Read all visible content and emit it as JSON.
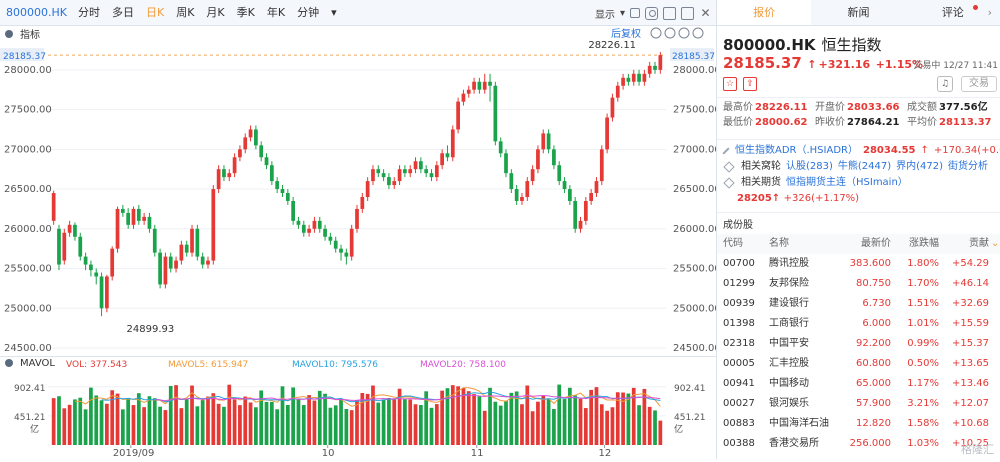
{
  "toolbar": {
    "symbol": "800000.HK",
    "tabs": [
      "分时",
      "多日",
      "日K",
      "周K",
      "月K",
      "季K",
      "年K",
      "分钟"
    ],
    "display_label": "显示"
  },
  "chart": {
    "indicator_label": "指标",
    "adjust_label": "后复权",
    "price_labels": [
      "28000.00",
      "27500.00",
      "27000.00",
      "26500.00",
      "26000.00",
      "25500.00",
      "25000.00",
      "24500.00"
    ],
    "current_price_tag": "28185.37",
    "high_note": "28226.11",
    "low_note": "24899.93",
    "vol_label": "MAVOL",
    "vol_legend": [
      {
        "label": "VOL: 377.543",
        "color": "#e53935"
      },
      {
        "label": "MAVOL5: 615.947",
        "color": "#f29b38"
      },
      {
        "label": "MAVOL10: 795.576",
        "color": "#29a3e0"
      },
      {
        "label": "MAVOL20: 758.100",
        "color": "#d94fd6"
      }
    ],
    "vol_axis": [
      "902.41",
      "451.21",
      "亿"
    ],
    "x_labels": [
      "2019/09",
      "10",
      "11",
      "12"
    ]
  },
  "chart_data": {
    "type": "candlestick",
    "ylim": [
      24500,
      28300
    ],
    "volume_unit": "亿",
    "candles": [
      [
        26100,
        26450,
        26050,
        26480
      ],
      [
        26000,
        25550,
        25480,
        26050
      ],
      [
        25600,
        25950,
        25550,
        26000
      ],
      [
        25950,
        26050,
        25900,
        26100
      ],
      [
        26050,
        25900,
        25850,
        26080
      ],
      [
        25900,
        25650,
        25600,
        25950
      ],
      [
        25650,
        25550,
        25480,
        25700
      ],
      [
        25550,
        25480,
        25400,
        25600
      ],
      [
        25450,
        25400,
        25300,
        25500
      ],
      [
        25400,
        25000,
        24900,
        25450
      ],
      [
        25000,
        25400,
        24950,
        25420
      ],
      [
        25400,
        25750,
        25350,
        25780
      ],
      [
        25750,
        26250,
        25700,
        26280
      ],
      [
        26250,
        26200,
        26150,
        26300
      ],
      [
        26200,
        26050,
        26000,
        26260
      ],
      [
        26050,
        26250,
        26000,
        26280
      ],
      [
        26250,
        26100,
        26050,
        26300
      ],
      [
        26100,
        26150,
        26050,
        26200
      ],
      [
        26150,
        26000,
        25950,
        26200
      ],
      [
        26000,
        25700,
        25650,
        26050
      ],
      [
        25700,
        25300,
        25250,
        25750
      ],
      [
        25300,
        25650,
        25250,
        25700
      ],
      [
        25650,
        25500,
        25450,
        25700
      ],
      [
        25500,
        25600,
        25450,
        25650
      ],
      [
        25600,
        25800,
        25550,
        25850
      ],
      [
        25800,
        25700,
        25650,
        25850
      ],
      [
        25700,
        26000,
        25650,
        26050
      ],
      [
        26000,
        25650,
        25600,
        26050
      ],
      [
        25650,
        25550,
        25500,
        25700
      ],
      [
        25550,
        25600,
        25500,
        25650
      ],
      [
        25600,
        26500,
        25550,
        26550
      ],
      [
        26500,
        26750,
        26450,
        26800
      ],
      [
        26750,
        26650,
        26600,
        26800
      ],
      [
        26650,
        26700,
        26600,
        26750
      ],
      [
        26700,
        26900,
        26650,
        26950
      ],
      [
        26900,
        27000,
        26850,
        27050
      ],
      [
        27000,
        27150,
        26950,
        27200
      ],
      [
        27150,
        27250,
        27100,
        27300
      ],
      [
        27250,
        27050,
        27000,
        27300
      ],
      [
        27050,
        26900,
        26850,
        27100
      ],
      [
        26900,
        26800,
        26750,
        26950
      ],
      [
        26800,
        26600,
        26550,
        26850
      ],
      [
        26600,
        26500,
        26450,
        26650
      ],
      [
        26500,
        26450,
        26400,
        26550
      ],
      [
        26450,
        26350,
        26300,
        26500
      ],
      [
        26350,
        26100,
        26050,
        26400
      ],
      [
        26100,
        26050,
        26000,
        26150
      ],
      [
        26050,
        25950,
        25900,
        26100
      ],
      [
        25950,
        26000,
        25900,
        26050
      ],
      [
        26000,
        26100,
        25950,
        26150
      ],
      [
        26100,
        26000,
        25950,
        26150
      ],
      [
        26000,
        25900,
        25850,
        26050
      ],
      [
        25900,
        25850,
        25800,
        25950
      ],
      [
        25850,
        25750,
        25700,
        25900
      ],
      [
        25750,
        25700,
        25600,
        25800
      ],
      [
        25700,
        25650,
        25550,
        25750
      ],
      [
        25650,
        26000,
        25600,
        26050
      ],
      [
        26000,
        26250,
        25950,
        26300
      ],
      [
        26250,
        26400,
        26200,
        26450
      ],
      [
        26400,
        26600,
        26350,
        26650
      ],
      [
        26600,
        26750,
        26550,
        26800
      ],
      [
        26750,
        26700,
        26650,
        26800
      ],
      [
        26700,
        26650,
        26600,
        26750
      ],
      [
        26650,
        26550,
        26500,
        26700
      ],
      [
        26550,
        26600,
        26500,
        26650
      ],
      [
        26600,
        26750,
        26550,
        26800
      ],
      [
        26750,
        26700,
        26650,
        26800
      ],
      [
        26700,
        26750,
        26650,
        26800
      ],
      [
        26750,
        26850,
        26700,
        26900
      ],
      [
        26850,
        26750,
        26700,
        26900
      ],
      [
        26750,
        26700,
        26650,
        26800
      ],
      [
        26700,
        26650,
        26600,
        26750
      ],
      [
        26650,
        26800,
        26600,
        26850
      ],
      [
        26800,
        26950,
        26750,
        27000
      ],
      [
        26950,
        26900,
        26850,
        27050
      ],
      [
        26900,
        27250,
        26850,
        27300
      ],
      [
        27250,
        27600,
        27200,
        27650
      ],
      [
        27600,
        27700,
        27550,
        27750
      ],
      [
        27700,
        27750,
        27650,
        27800
      ],
      [
        27750,
        27850,
        27700,
        27900
      ],
      [
        27850,
        27750,
        27700,
        27900
      ],
      [
        27750,
        27850,
        27700,
        27950
      ],
      [
        27850,
        27800,
        27600,
        27950
      ],
      [
        27800,
        27100,
        27050,
        27850
      ],
      [
        27100,
        26950,
        26900,
        27150
      ],
      [
        26950,
        26700,
        26650,
        27000
      ],
      [
        26700,
        26500,
        26450,
        26750
      ],
      [
        26500,
        26350,
        26300,
        26550
      ],
      [
        26350,
        26400,
        26300,
        26450
      ],
      [
        26400,
        26600,
        26350,
        26650
      ],
      [
        26600,
        26750,
        26550,
        26800
      ],
      [
        26750,
        27000,
        26700,
        27050
      ],
      [
        27000,
        27200,
        26950,
        27250
      ],
      [
        27200,
        27000,
        26950,
        27250
      ],
      [
        27000,
        26800,
        26750,
        27050
      ],
      [
        26800,
        26600,
        26550,
        26850
      ],
      [
        26600,
        26500,
        26450,
        26650
      ],
      [
        26500,
        26350,
        26300,
        26550
      ],
      [
        26350,
        26000,
        25950,
        26400
      ],
      [
        26000,
        26100,
        25950,
        26150
      ],
      [
        26100,
        26350,
        26050,
        26400
      ],
      [
        26350,
        26450,
        26300,
        26500
      ],
      [
        26450,
        26600,
        26400,
        26650
      ],
      [
        26600,
        27000,
        26550,
        27050
      ],
      [
        27000,
        27400,
        26950,
        27450
      ],
      [
        27400,
        27650,
        27350,
        27700
      ],
      [
        27650,
        27800,
        27600,
        27850
      ],
      [
        27800,
        27900,
        27750,
        27950
      ],
      [
        27900,
        27850,
        27800,
        27950
      ],
      [
        27850,
        27950,
        27800,
        28000
      ],
      [
        27950,
        27850,
        27800,
        28000
      ],
      [
        27850,
        27950,
        27800,
        28000
      ],
      [
        27950,
        28050,
        27900,
        28100
      ],
      [
        28050,
        28000,
        27950,
        28100
      ],
      [
        28000,
        28185,
        27950,
        28226
      ]
    ]
  },
  "panel": {
    "tabs": [
      "报价",
      "新闻",
      "评论"
    ],
    "code": "800000.HK",
    "name": "恒生指数",
    "price": "28185.37",
    "arrow": "↑",
    "change": "+321.16",
    "pct": "+1.15%",
    "status": "交易中 12/27 11:41",
    "trade_label": "交易",
    "stats": [
      [
        {
          "k": "最高价",
          "v": "28226.11",
          "c": "red"
        },
        {
          "k": "开盘价",
          "v": "28033.66",
          "c": "red"
        },
        {
          "k": "成交额",
          "v": "377.56亿",
          "c": "dark"
        }
      ],
      [
        {
          "k": "最低价",
          "v": "28000.62",
          "c": "red"
        },
        {
          "k": "昨收价",
          "v": "27864.21",
          "c": "dark"
        },
        {
          "k": "平均价",
          "v": "28113.37",
          "c": "red"
        }
      ]
    ],
    "adr": {
      "name": "恒生指数ADR（.HSIADR）",
      "price": "28034.55",
      "arrow": "↑",
      "chg": "+170.34(+0.61%)"
    },
    "related": {
      "label": "相关窝轮",
      "items": [
        "认股(283)",
        "牛熊(2447)",
        "界内(472)",
        "街货分析"
      ]
    },
    "futures": {
      "label": "相关期货",
      "name": "恒指期货主连（HSImain）",
      "price": "28205",
      "arrow": "↑",
      "chg": "+326(+1.17%)"
    },
    "comp_title": "成份股",
    "comp_headers": [
      "代码",
      "名称",
      "最新价",
      "涨跌幅",
      "贡献"
    ],
    "comp_rows": [
      [
        "00700",
        "腾讯控股",
        "383.600",
        "1.80%",
        "+54.29"
      ],
      [
        "01299",
        "友邦保险",
        "80.750",
        "1.70%",
        "+46.14"
      ],
      [
        "00939",
        "建设银行",
        "6.730",
        "1.51%",
        "+32.69"
      ],
      [
        "01398",
        "工商银行",
        "6.000",
        "1.01%",
        "+15.59"
      ],
      [
        "02318",
        "中国平安",
        "92.200",
        "0.99%",
        "+15.37"
      ],
      [
        "00005",
        "汇丰控股",
        "60.800",
        "0.50%",
        "+13.65"
      ],
      [
        "00941",
        "中国移动",
        "65.000",
        "1.17%",
        "+13.46"
      ],
      [
        "00027",
        "银河娱乐",
        "57.900",
        "3.21%",
        "+12.07"
      ],
      [
        "00883",
        "中国海洋石油",
        "12.820",
        "1.58%",
        "+10.68"
      ],
      [
        "00388",
        "香港交易所",
        "256.000",
        "1.03%",
        "+10.25"
      ]
    ],
    "watermark": "格隆汇"
  }
}
